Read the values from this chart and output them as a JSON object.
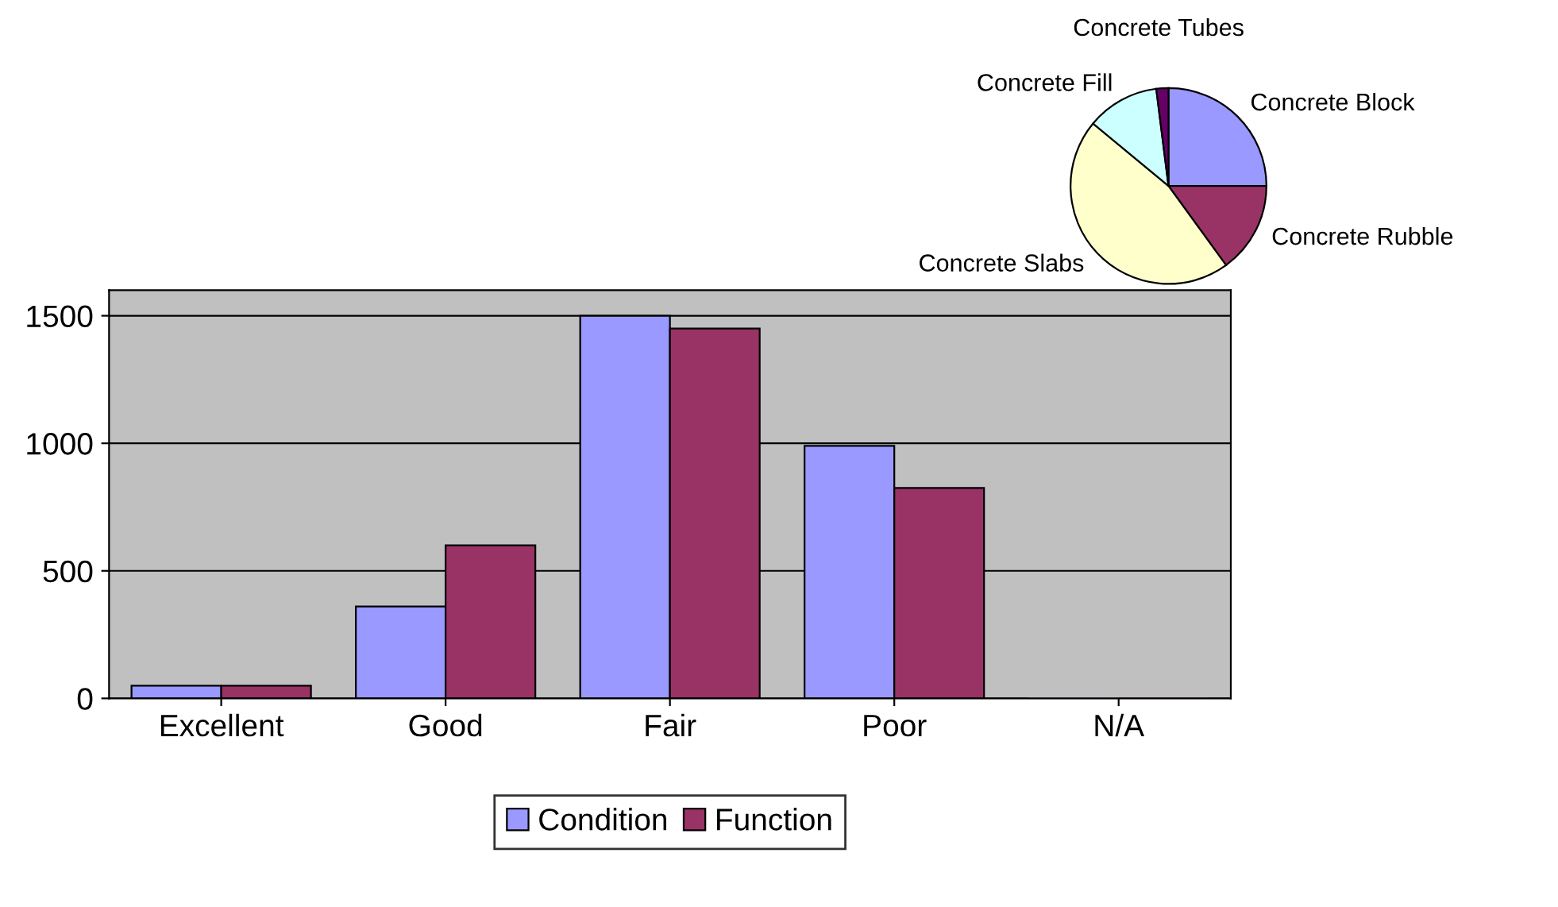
{
  "chart_data": [
    {
      "type": "bar",
      "categories": [
        "Excellent",
        "Good",
        "Fair",
        "Poor",
        "N/A"
      ],
      "series": [
        {
          "name": "Condition",
          "color": "#9999ff",
          "values": [
            50,
            360,
            1500,
            990,
            0
          ]
        },
        {
          "name": "Function",
          "color": "#993366",
          "values": [
            50,
            600,
            1450,
            825,
            0
          ]
        }
      ],
      "ylim": [
        0,
        1600
      ],
      "yticks": [
        0,
        500,
        1000,
        1500
      ],
      "grid": "y",
      "legend": "bottom"
    },
    {
      "type": "pie",
      "categories": [
        "Concrete Block",
        "Concrete Rubble",
        "Concrete Slabs",
        "Concrete Fill",
        "Concrete Tubes"
      ],
      "values": [
        25,
        15,
        46,
        12,
        2
      ],
      "colors": [
        "#9999ff",
        "#993366",
        "#ffffcc",
        "#ccffff",
        "#660066"
      ]
    }
  ]
}
